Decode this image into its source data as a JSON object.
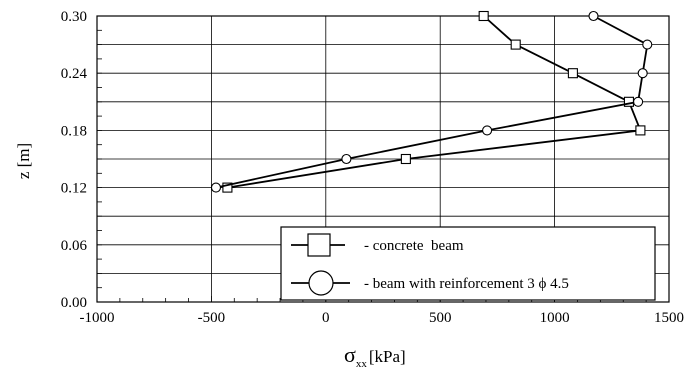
{
  "chart_data": {
    "type": "line",
    "xlim": [
      -1000,
      1500
    ],
    "ylim": [
      0.0,
      0.3
    ],
    "x_ticks": [
      -1000,
      -500,
      0,
      500,
      1000,
      1500
    ],
    "y_ticks": [
      0.0,
      0.06,
      0.12,
      0.18,
      0.24,
      0.3
    ],
    "x_tick_labels": [
      "-1000",
      "-500",
      "0",
      "500",
      "1000",
      "1500"
    ],
    "y_tick_labels": [
      "0.00",
      "0.06",
      "0.12",
      "0.18",
      "0.24",
      "0.30"
    ],
    "xlabel": {
      "symbol": "σ",
      "subscript": "xx",
      "unit": "[kPa]"
    },
    "ylabel": "z [m]",
    "grid": true,
    "legend_position": "bottom-right",
    "series": [
      {
        "name": "- concrete  beam",
        "marker": "square",
        "color": "#000000",
        "x": [
          -430,
          350,
          1375,
          1325,
          1080,
          830,
          690
        ],
        "y": [
          0.12,
          0.15,
          0.18,
          0.21,
          0.24,
          0.27,
          0.3
        ]
      },
      {
        "name": "- beam with reinforcement 3 ϕ 4.5",
        "marker": "circle",
        "color": "#000000",
        "x": [
          -480,
          90,
          705,
          1365,
          1385,
          1405,
          1170
        ],
        "y": [
          0.12,
          0.15,
          0.18,
          0.21,
          0.24,
          0.27,
          0.3
        ]
      }
    ]
  }
}
